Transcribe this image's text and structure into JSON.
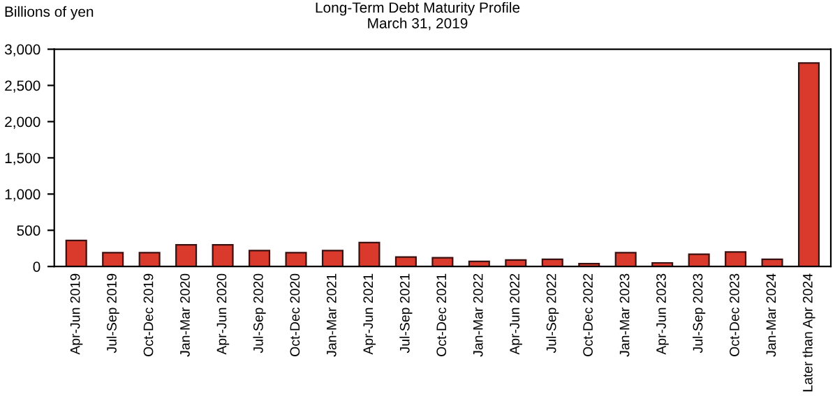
{
  "chart_data": {
    "type": "bar",
    "title": "Long-Term Debt Maturity Profile\nMarch 31, 2019",
    "ylabel": "Billions of yen",
    "categories": [
      "Apr-Jun 2019",
      "Jul-Sep 2019",
      "Oct-Dec 2019",
      "Jan-Mar 2020",
      "Apr-Jun 2020",
      "Jul-Sep 2020",
      "Oct-Dec 2020",
      "Jan-Mar 2021",
      "Apr-Jun 2021",
      "Jul-Sep 2021",
      "Oct-Dec 2021",
      "Jan-Mar 2022",
      "Apr-Jun 2022",
      "Jul-Sep 2022",
      "Oct-Dec 2022",
      "Jan-Mar 2023",
      "Apr-Jun 2023",
      "Jul-Sep 2023",
      "Oct-Dec 2023",
      "Jan-Mar 2024",
      "Later than Apr 2024"
    ],
    "values": [
      360,
      190,
      190,
      300,
      300,
      220,
      190,
      220,
      330,
      130,
      120,
      70,
      90,
      100,
      40,
      190,
      50,
      170,
      200,
      100,
      2810
    ],
    "color": "#d93a2b",
    "ylim": [
      0,
      3000
    ],
    "yticks": [
      0,
      {
        "value": 500,
        "label": "500"
      },
      {
        "value": 1000,
        "label": "1,000"
      },
      {
        "value": 1500,
        "label": "1,500"
      },
      {
        "value": 2000,
        "label": "2,000"
      },
      {
        "value": 2500,
        "label": "2,500"
      },
      {
        "value": 3000,
        "label": "3,000"
      }
    ],
    "grid": false,
    "legend": false
  }
}
